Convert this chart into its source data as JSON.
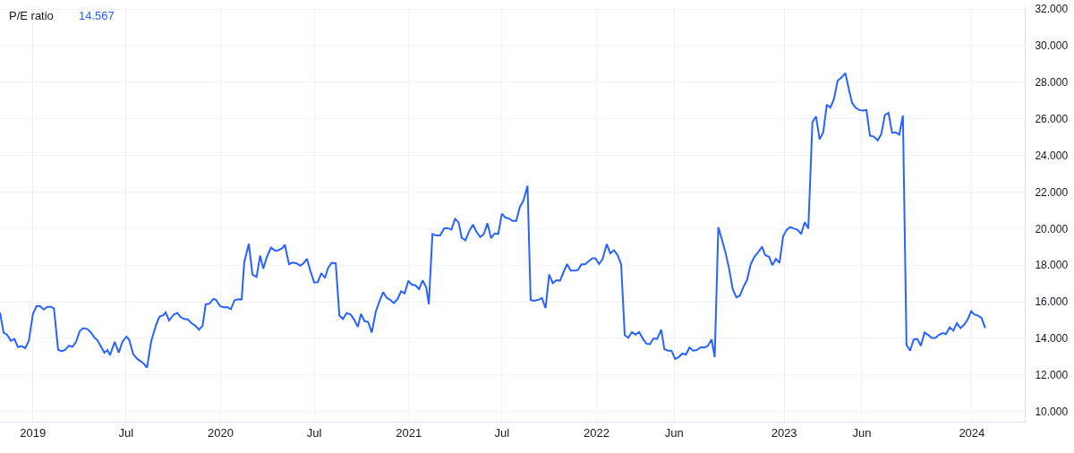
{
  "chart_data": {
    "type": "line",
    "title": "P/E ratio",
    "annotations": [
      "14.567"
    ],
    "color": "#2962ff",
    "grid": true,
    "xlim": [
      "2018-10-29",
      "2024-04-13"
    ],
    "xticks": [
      {
        "value": "2019-01-01",
        "label": "2019"
      },
      {
        "value": "2019-07-01",
        "label": "Jul"
      },
      {
        "value": "2020-01-01",
        "label": "2020"
      },
      {
        "value": "2020-07-01",
        "label": "Jul"
      },
      {
        "value": "2021-01-01",
        "label": "2021"
      },
      {
        "value": "2021-07-01",
        "label": "Jul"
      },
      {
        "value": "2022-01-01",
        "label": "2022"
      },
      {
        "value": "2022-06-01",
        "label": "Jun"
      },
      {
        "value": "2023-01-01",
        "label": "2023"
      },
      {
        "value": "2023-06-01",
        "label": "Jun"
      },
      {
        "value": "2024-01-01",
        "label": "2024"
      }
    ],
    "ylim": [
      9.45,
      32.1
    ],
    "yticks": [
      {
        "value": 10,
        "label": "10.000"
      },
      {
        "value": 12,
        "label": "12.000"
      },
      {
        "value": 14,
        "label": "14.000"
      },
      {
        "value": 16,
        "label": "16.000"
      },
      {
        "value": 18,
        "label": "18.000"
      },
      {
        "value": 20,
        "label": "20.000"
      },
      {
        "value": 22,
        "label": "22.000"
      },
      {
        "value": 24,
        "label": "24.000"
      },
      {
        "value": 26,
        "label": "26.000"
      },
      {
        "value": 28,
        "label": "28.000"
      },
      {
        "value": 30,
        "label": "30.000"
      },
      {
        "value": 32,
        "label": "32.000"
      }
    ],
    "x": [
      "2018-10-29",
      "2018-11-05",
      "2018-11-12",
      "2018-11-19",
      "2018-11-26",
      "2018-12-03",
      "2018-12-10",
      "2018-12-17",
      "2018-12-24",
      "2019-01-01",
      "2019-01-08",
      "2019-01-15",
      "2019-01-22",
      "2019-01-29",
      "2019-02-05",
      "2019-02-11",
      "2019-02-19",
      "2019-02-26",
      "2019-03-04",
      "2019-03-12",
      "2019-03-19",
      "2019-03-26",
      "2019-04-02",
      "2019-04-09",
      "2019-04-17",
      "2019-04-24",
      "2019-05-01",
      "2019-05-06",
      "2019-05-13",
      "2019-05-20",
      "2019-05-26",
      "2019-05-31",
      "2019-06-09",
      "2019-06-17",
      "2019-06-24",
      "2019-07-02",
      "2019-07-07",
      "2019-07-15",
      "2019-07-23",
      "2019-07-30",
      "2019-08-06",
      "2019-08-11",
      "2019-08-19",
      "2019-08-28",
      "2019-09-04",
      "2019-09-12",
      "2019-09-16",
      "2019-09-23",
      "2019-10-02",
      "2019-10-09",
      "2019-10-15",
      "2019-10-22",
      "2019-10-29",
      "2019-11-06",
      "2019-11-13",
      "2019-11-20",
      "2019-11-27",
      "2019-12-03",
      "2019-12-10",
      "2019-12-18",
      "2019-12-23",
      "2019-12-31",
      "2020-01-07",
      "2020-01-14",
      "2020-01-21",
      "2020-01-28",
      "2020-02-04",
      "2020-02-11",
      "2020-02-16",
      "2020-02-25",
      "2020-03-03",
      "2020-03-11",
      "2020-03-18",
      "2020-03-24",
      "2020-03-31",
      "2020-04-08",
      "2020-04-16",
      "2020-04-23",
      "2020-04-30",
      "2020-05-05",
      "2020-05-13",
      "2020-05-20",
      "2020-05-28",
      "2020-06-04",
      "2020-06-10",
      "2020-06-17",
      "2020-06-24",
      "2020-07-01",
      "2020-07-08",
      "2020-07-15",
      "2020-07-22",
      "2020-07-28",
      "2020-08-04",
      "2020-08-12",
      "2020-08-19",
      "2020-08-26",
      "2020-09-02",
      "2020-09-10",
      "2020-09-16",
      "2020-09-24",
      "2020-09-30",
      "2020-10-07",
      "2020-10-14",
      "2020-10-21",
      "2020-10-29",
      "2020-11-05",
      "2020-11-12",
      "2020-11-19",
      "2020-11-26",
      "2020-12-03",
      "2020-12-10",
      "2020-12-17",
      "2020-12-24",
      "2020-12-31",
      "2021-01-07",
      "2021-01-14",
      "2021-01-21",
      "2021-01-28",
      "2021-02-04",
      "2021-02-09",
      "2021-02-16",
      "2021-02-24",
      "2021-03-03",
      "2021-03-11",
      "2021-03-18",
      "2021-03-25",
      "2021-04-01",
      "2021-04-08",
      "2021-04-14",
      "2021-04-21",
      "2021-04-29",
      "2021-05-06",
      "2021-05-13",
      "2021-05-20",
      "2021-05-27",
      "2021-06-03",
      "2021-06-10",
      "2021-06-17",
      "2021-06-24",
      "2021-07-01",
      "2021-07-08",
      "2021-07-15",
      "2021-07-22",
      "2021-07-29",
      "2021-08-05",
      "2021-08-12",
      "2021-08-20",
      "2021-08-26",
      "2021-09-02",
      "2021-09-09",
      "2021-09-17",
      "2021-09-24",
      "2021-10-01",
      "2021-10-08",
      "2021-10-15",
      "2021-10-22",
      "2021-10-29",
      "2021-11-05",
      "2021-11-12",
      "2021-11-19",
      "2021-11-26",
      "2021-12-03",
      "2021-12-10",
      "2021-12-17",
      "2021-12-24",
      "2021-12-30",
      "2022-01-06",
      "2022-01-13",
      "2022-01-21",
      "2022-01-28",
      "2022-02-04",
      "2022-02-11",
      "2022-02-18",
      "2022-02-25",
      "2022-03-04",
      "2022-03-11",
      "2022-03-18",
      "2022-03-25",
      "2022-04-01",
      "2022-04-08",
      "2022-04-15",
      "2022-04-22",
      "2022-04-29",
      "2022-05-07",
      "2022-05-13",
      "2022-05-20",
      "2022-05-27",
      "2022-06-03",
      "2022-06-10",
      "2022-06-17",
      "2022-06-24",
      "2022-07-01",
      "2022-07-08",
      "2022-07-15",
      "2022-07-23",
      "2022-07-30",
      "2022-08-05",
      "2022-08-13",
      "2022-08-19",
      "2022-08-26",
      "2022-09-02",
      "2022-09-09",
      "2022-09-16",
      "2022-09-23",
      "2022-09-30",
      "2022-10-07",
      "2022-10-14",
      "2022-10-21",
      "2022-10-28",
      "2022-11-04",
      "2022-11-11",
      "2022-11-19",
      "2022-11-25",
      "2022-12-03",
      "2022-12-09",
      "2022-12-16",
      "2022-12-23",
      "2022-12-30",
      "2023-01-06",
      "2023-01-13",
      "2023-01-20",
      "2023-01-27",
      "2023-02-03",
      "2023-02-10",
      "2023-02-17",
      "2023-02-25",
      "2023-03-04",
      "2023-03-11",
      "2023-03-18",
      "2023-03-25",
      "2023-04-01",
      "2023-04-08",
      "2023-04-15",
      "2023-04-23",
      "2023-04-30",
      "2023-05-07",
      "2023-05-13",
      "2023-05-20",
      "2023-05-27",
      "2023-06-03",
      "2023-06-10",
      "2023-06-17",
      "2023-06-24",
      "2023-07-02",
      "2023-07-09",
      "2023-07-16",
      "2023-07-23",
      "2023-07-30",
      "2023-08-06",
      "2023-08-13",
      "2023-08-20",
      "2023-08-27",
      "2023-09-03",
      "2023-09-10",
      "2023-09-17",
      "2023-09-24",
      "2023-10-01",
      "2023-10-08",
      "2023-10-15",
      "2023-10-22",
      "2023-10-29",
      "2023-11-05",
      "2023-11-12",
      "2023-11-19",
      "2023-11-26",
      "2023-12-03",
      "2023-12-10",
      "2023-12-17",
      "2023-12-24",
      "2023-12-31",
      "2024-01-06",
      "2024-01-13",
      "2024-01-20",
      "2024-01-27"
    ],
    "values": [
      15.41,
      14.32,
      14.18,
      13.87,
      13.97,
      13.52,
      13.58,
      13.47,
      13.86,
      15.33,
      15.76,
      15.76,
      15.58,
      15.73,
      15.73,
      15.63,
      13.38,
      13.31,
      13.36,
      13.6,
      13.54,
      13.81,
      14.4,
      14.56,
      14.51,
      14.32,
      14.03,
      13.92,
      13.57,
      13.22,
      13.36,
      13.09,
      13.81,
      13.22,
      13.81,
      14.1,
      13.94,
      13.14,
      12.88,
      12.75,
      12.58,
      12.4,
      13.84,
      14.69,
      15.18,
      15.28,
      15.42,
      14.99,
      15.31,
      15.39,
      15.17,
      15.06,
      15.04,
      14.82,
      14.69,
      14.48,
      14.69,
      15.86,
      15.89,
      16.16,
      16.11,
      15.76,
      15.7,
      15.71,
      15.6,
      16.08,
      16.14,
      16.13,
      18.16,
      19.17,
      17.49,
      17.36,
      18.53,
      17.81,
      18.45,
      18.96,
      18.8,
      18.82,
      18.93,
      19.12,
      18.06,
      18.14,
      18.1,
      17.97,
      18.1,
      18.35,
      17.65,
      17.06,
      17.07,
      17.57,
      17.3,
      17.84,
      18.13,
      18.1,
      15.25,
      15.06,
      15.38,
      15.3,
      15.06,
      14.64,
      15.33,
      14.94,
      14.9,
      14.32,
      15.48,
      16.02,
      16.53,
      16.22,
      16.1,
      15.93,
      16.14,
      16.57,
      16.46,
      17.14,
      16.93,
      16.9,
      16.69,
      17.17,
      16.78,
      15.86,
      19.7,
      19.62,
      19.62,
      20.02,
      20.02,
      19.95,
      20.53,
      20.34,
      19.49,
      19.36,
      19.89,
      20.21,
      19.81,
      19.54,
      19.7,
      20.29,
      19.49,
      19.73,
      19.7,
      20.82,
      20.6,
      20.55,
      20.42,
      20.42,
      21.18,
      21.53,
      22.34,
      16.1,
      16.06,
      16.1,
      16.21,
      15.65,
      17.49,
      17.02,
      17.18,
      17.15,
      17.62,
      18.06,
      17.7,
      17.7,
      17.74,
      18.05,
      18.05,
      18.22,
      18.38,
      18.38,
      18.06,
      18.34,
      19.15,
      18.64,
      18.82,
      18.56,
      18.05,
      14.18,
      14.03,
      14.35,
      14.21,
      14.35,
      14.0,
      13.71,
      13.68,
      14.0,
      13.97,
      14.48,
      13.42,
      13.33,
      13.33,
      12.88,
      12.98,
      13.17,
      13.12,
      13.5,
      13.33,
      13.36,
      13.52,
      13.5,
      13.57,
      13.94,
      12.98,
      20.08,
      19.41,
      18.69,
      17.81,
      16.69,
      16.24,
      16.34,
      16.82,
      17.2,
      18.05,
      18.45,
      18.69,
      19.01,
      18.56,
      18.45,
      18.0,
      18.34,
      18.13,
      19.57,
      19.94,
      20.08,
      20.0,
      19.94,
      19.7,
      20.35,
      20.0,
      25.81,
      26.13,
      24.88,
      25.25,
      26.77,
      26.61,
      27.09,
      28.08,
      28.27,
      28.5,
      27.6,
      26.88,
      26.61,
      26.48,
      26.45,
      26.48,
      25.07,
      25.04,
      24.82,
      25.17,
      26.21,
      26.32,
      25.23,
      25.26,
      25.14,
      26.18,
      13.65,
      13.33,
      13.94,
      13.97,
      13.6,
      14.32,
      14.19,
      14.02,
      14.02,
      14.19,
      14.29,
      14.24,
      14.61,
      14.42,
      14.83,
      14.56,
      14.74,
      15.04,
      15.49,
      15.3,
      15.25,
      15.12,
      14.567
    ]
  }
}
